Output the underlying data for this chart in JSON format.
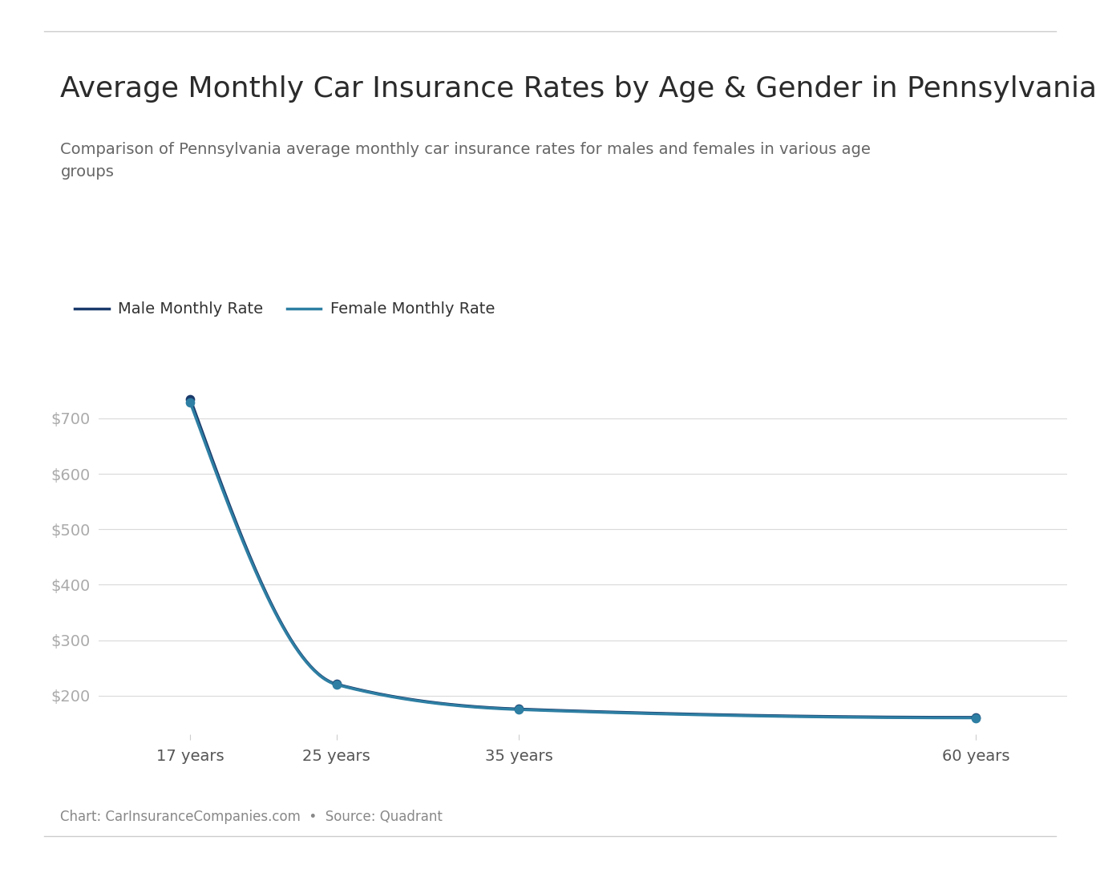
{
  "title": "Average Monthly Car Insurance Rates by Age & Gender in Pennsylvania",
  "subtitle": "Comparison of Pennsylvania average monthly car insurance rates for males and females in various age\ngroups",
  "ages": [
    17,
    25,
    35,
    60
  ],
  "age_labels": [
    "17 years",
    "25 years",
    "35 years",
    "60 years"
  ],
  "male_rates": [
    735,
    221,
    176,
    161
  ],
  "female_rates": [
    728,
    220,
    175,
    160
  ],
  "male_color": "#1a3a6b",
  "female_color": "#2e7fa3",
  "male_label": "Male Monthly Rate",
  "female_label": "Female Monthly Rate",
  "y_ticks": [
    200,
    300,
    400,
    500,
    600,
    700
  ],
  "y_min": 130,
  "y_max": 800,
  "background_color": "#ffffff",
  "grid_color": "#d9d9d9",
  "tick_color": "#aaaaaa",
  "title_fontsize": 26,
  "subtitle_fontsize": 14,
  "legend_fontsize": 14,
  "tick_fontsize": 14,
  "footer_text": "Chart: CarInsuranceCompanies.com  •  Source: Quadrant",
  "footer_fontsize": 12
}
